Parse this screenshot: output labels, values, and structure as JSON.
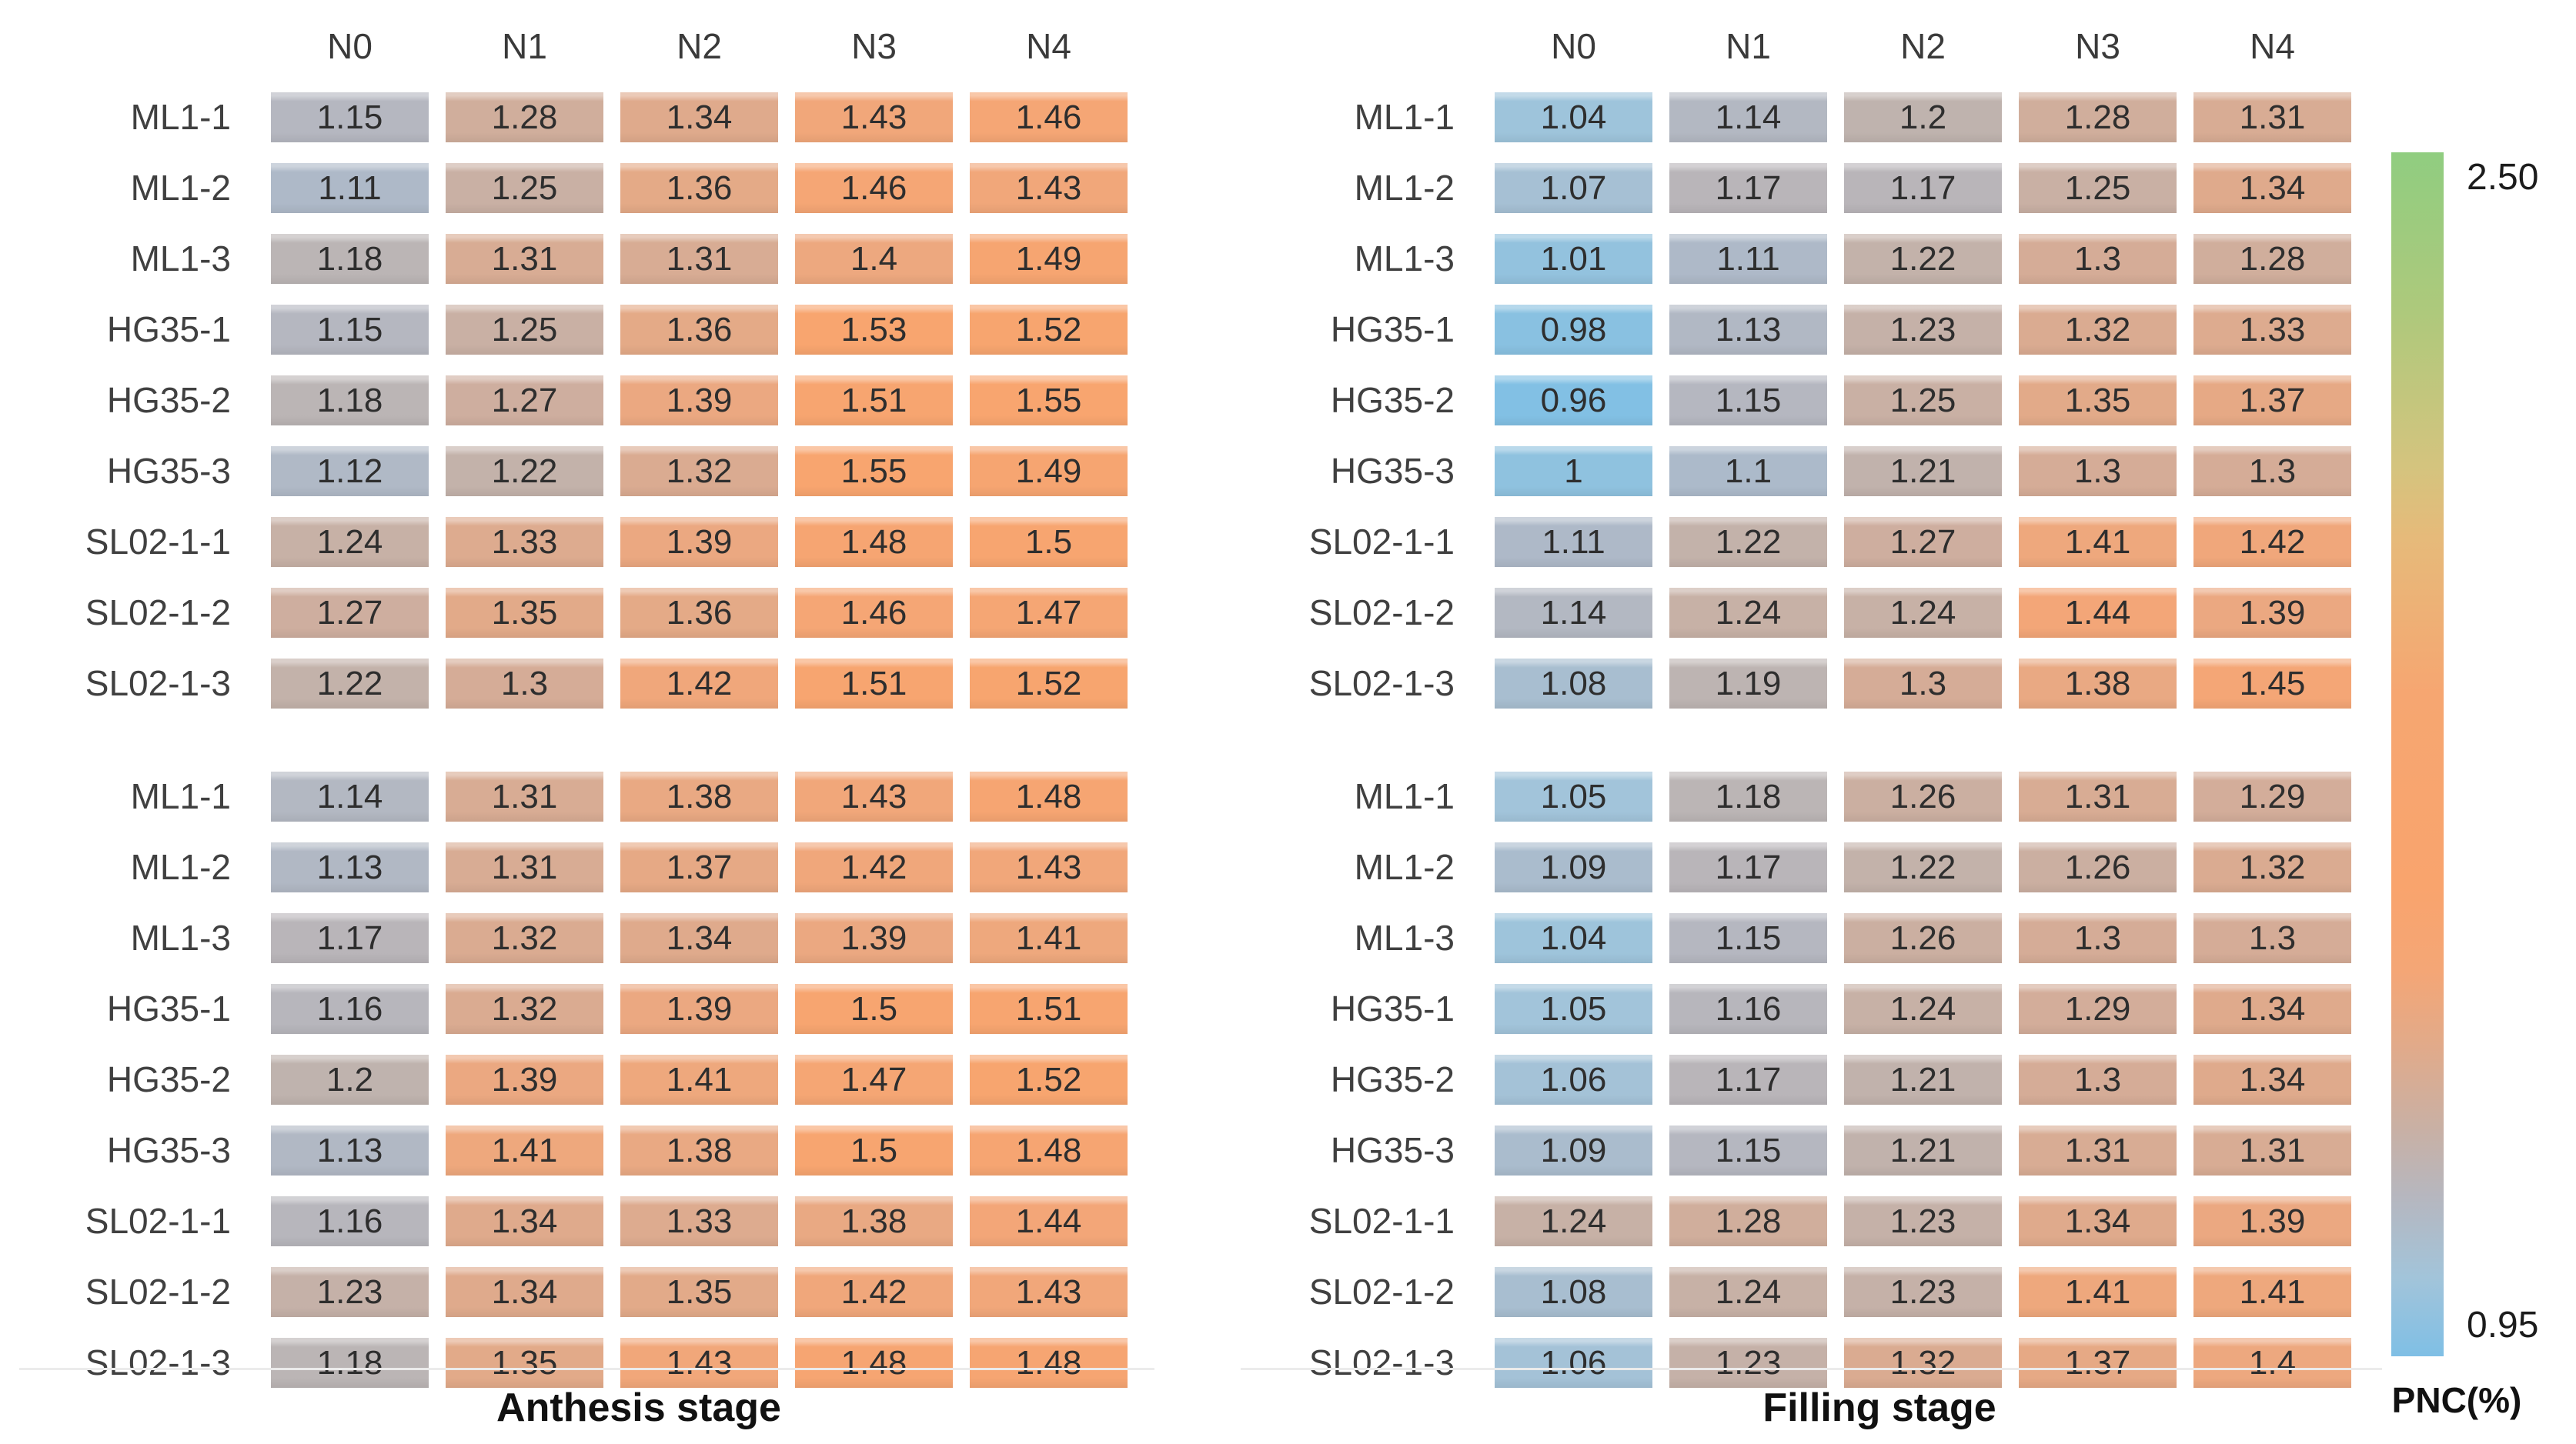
{
  "chart_data": {
    "type": "heatmap",
    "title": "",
    "x_labels": [
      "N0",
      "N1",
      "N2",
      "N3",
      "N4"
    ],
    "y_labels": [
      "ML1-1",
      "ML1-2",
      "ML1-3",
      "HG35-1",
      "HG35-2",
      "HG35-3",
      "SL02-1-1",
      "SL02-1-2",
      "SL02-1-3"
    ],
    "panels": [
      {
        "stage": "Anthesis stage",
        "block": "top",
        "values": [
          [
            1.15,
            1.28,
            1.34,
            1.43,
            1.46
          ],
          [
            1.11,
            1.25,
            1.36,
            1.46,
            1.43
          ],
          [
            1.18,
            1.31,
            1.31,
            1.4,
            1.49
          ],
          [
            1.15,
            1.25,
            1.36,
            1.53,
            1.52
          ],
          [
            1.18,
            1.27,
            1.39,
            1.51,
            1.55
          ],
          [
            1.12,
            1.22,
            1.32,
            1.55,
            1.49
          ],
          [
            1.24,
            1.33,
            1.39,
            1.48,
            1.5
          ],
          [
            1.27,
            1.35,
            1.36,
            1.46,
            1.47
          ],
          [
            1.22,
            1.3,
            1.42,
            1.51,
            1.52
          ]
        ]
      },
      {
        "stage": "Filling stage",
        "block": "top",
        "values": [
          [
            1.04,
            1.14,
            1.2,
            1.28,
            1.31
          ],
          [
            1.07,
            1.17,
            1.17,
            1.25,
            1.34
          ],
          [
            1.01,
            1.11,
            1.22,
            1.3,
            1.28
          ],
          [
            0.98,
            1.13,
            1.23,
            1.32,
            1.33
          ],
          [
            0.96,
            1.15,
            1.25,
            1.35,
            1.37
          ],
          [
            1,
            1.1,
            1.21,
            1.3,
            1.3
          ],
          [
            1.11,
            1.22,
            1.27,
            1.41,
            1.42
          ],
          [
            1.14,
            1.24,
            1.24,
            1.44,
            1.39
          ],
          [
            1.08,
            1.19,
            1.3,
            1.38,
            1.45
          ]
        ]
      },
      {
        "stage": "Anthesis stage",
        "block": "bottom",
        "values": [
          [
            1.14,
            1.31,
            1.38,
            1.43,
            1.48
          ],
          [
            1.13,
            1.31,
            1.37,
            1.42,
            1.43
          ],
          [
            1.17,
            1.32,
            1.34,
            1.39,
            1.41
          ],
          [
            1.16,
            1.32,
            1.39,
            1.5,
            1.51
          ],
          [
            1.2,
            1.39,
            1.41,
            1.47,
            1.52
          ],
          [
            1.13,
            1.41,
            1.38,
            1.5,
            1.48
          ],
          [
            1.16,
            1.34,
            1.33,
            1.38,
            1.44
          ],
          [
            1.23,
            1.34,
            1.35,
            1.42,
            1.43
          ],
          [
            1.18,
            1.35,
            1.43,
            1.48,
            1.48
          ]
        ]
      },
      {
        "stage": "Filling stage",
        "block": "bottom",
        "values": [
          [
            1.05,
            1.18,
            1.26,
            1.31,
            1.29
          ],
          [
            1.09,
            1.17,
            1.22,
            1.26,
            1.32
          ],
          [
            1.04,
            1.15,
            1.26,
            1.3,
            1.3
          ],
          [
            1.05,
            1.16,
            1.24,
            1.29,
            1.34
          ],
          [
            1.06,
            1.17,
            1.21,
            1.3,
            1.34
          ],
          [
            1.09,
            1.15,
            1.21,
            1.31,
            1.31
          ],
          [
            1.24,
            1.28,
            1.23,
            1.34,
            1.39
          ],
          [
            1.08,
            1.24,
            1.23,
            1.41,
            1.41
          ],
          [
            1.06,
            1.23,
            1.32,
            1.37,
            1.4
          ]
        ]
      }
    ],
    "stage_axis_labels": [
      "Anthesis stage",
      "Filling stage"
    ],
    "colorbar": {
      "label": "PNC(%)",
      "min": 0.95,
      "max": 2.5,
      "max_label": "2.50",
      "min_label": "0.95",
      "gradient_bottom_to_top": [
        "#7fbfe5",
        "#b5b7c0",
        "#c9b0a4",
        "#e2aa89",
        "#f9a46d",
        "#e6ba7a",
        "#d4c47e",
        "#90cd80"
      ]
    },
    "layout": {
      "legend_position": "right",
      "grid": false,
      "value_color_range_in_data": [
        0.95,
        1.55
      ]
    }
  }
}
